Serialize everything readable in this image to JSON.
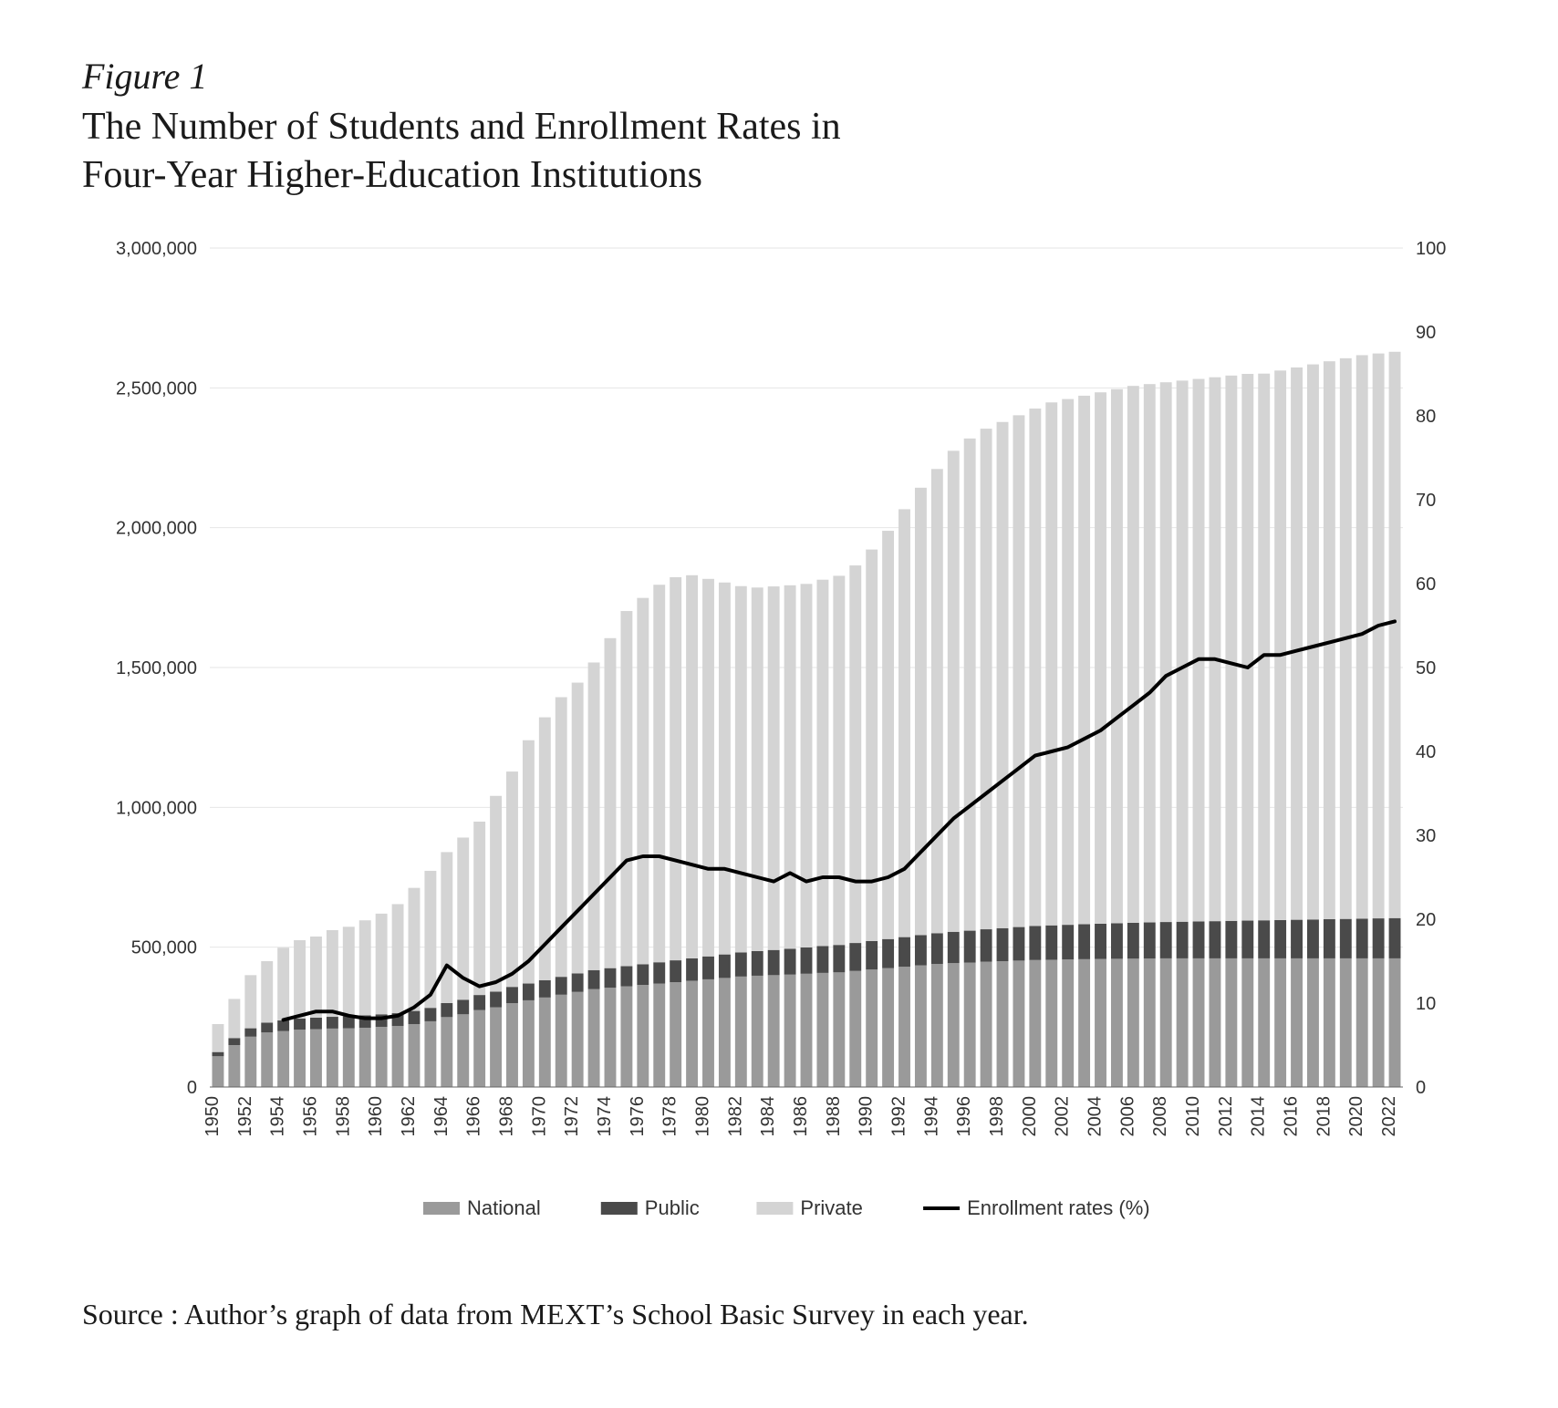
{
  "header": {
    "figure_label": "Figure 1",
    "title_line1": "The Number of Students and Enrollment Rates in",
    "title_line2": "Four-Year Higher-Education Institutions"
  },
  "chart": {
    "type": "stacked-bar + line (dual y-axis)",
    "background_color": "#ffffff",
    "grid_color": "#e6e6e6",
    "axis_color": "#666666",
    "axis_font_size": 20,
    "legend_font_size": 22,
    "tick_label_color": "#333333",
    "bar_gap_ratio": 0.28,
    "series_colors": {
      "national": "#9a9a9a",
      "public": "#4a4a4a",
      "private": "#d4d4d4",
      "line": "#000000"
    },
    "line_width": 4,
    "y_left": {
      "min": 0,
      "max": 3000000,
      "tick_step": 500000,
      "tick_labels": [
        "0",
        "500,000",
        "1,000,000",
        "1,500,000",
        "2,000,000",
        "2,500,000",
        "3,000,000"
      ]
    },
    "y_right": {
      "min": 0,
      "max": 100,
      "tick_step": 10,
      "tick_labels": [
        "0",
        "10",
        "20",
        "30",
        "40",
        "50",
        "60",
        "70",
        "80",
        "90",
        "100"
      ]
    },
    "x_tick_step": 2,
    "years": [
      1950,
      1951,
      1952,
      1953,
      1954,
      1955,
      1956,
      1957,
      1958,
      1959,
      1960,
      1961,
      1962,
      1963,
      1964,
      1965,
      1966,
      1967,
      1968,
      1969,
      1970,
      1971,
      1972,
      1973,
      1974,
      1975,
      1976,
      1977,
      1978,
      1979,
      1980,
      1981,
      1982,
      1983,
      1984,
      1985,
      1986,
      1987,
      1988,
      1989,
      1990,
      1991,
      1992,
      1993,
      1994,
      1995,
      1996,
      1997,
      1998,
      1999,
      2000,
      2001,
      2002,
      2003,
      2004,
      2005,
      2006,
      2007,
      2008,
      2009,
      2010,
      2011,
      2012,
      2013,
      2014,
      2015,
      2016,
      2017,
      2018,
      2019,
      2020,
      2021,
      2022
    ],
    "national": [
      110000,
      150000,
      180000,
      195000,
      200000,
      205000,
      207000,
      209000,
      210000,
      212000,
      215000,
      218000,
      225000,
      235000,
      250000,
      260000,
      275000,
      285000,
      300000,
      310000,
      320000,
      330000,
      340000,
      350000,
      355000,
      360000,
      365000,
      370000,
      375000,
      380000,
      385000,
      390000,
      395000,
      398000,
      400000,
      402000,
      405000,
      408000,
      410000,
      415000,
      420000,
      425000,
      430000,
      435000,
      440000,
      443000,
      445000,
      448000,
      450000,
      452000,
      454000,
      455000,
      456000,
      457000,
      458000,
      458500,
      459000,
      459500,
      460000,
      460000,
      460000,
      460000,
      460000,
      460000,
      460000,
      460000,
      460000,
      460000,
      460000,
      460000,
      460000,
      460000,
      460000
    ],
    "public": [
      15000,
      25000,
      30000,
      35000,
      38000,
      40000,
      41000,
      42000,
      43000,
      44000,
      45000,
      46000,
      47000,
      48000,
      50000,
      52000,
      54000,
      56000,
      58000,
      60000,
      62000,
      64000,
      66000,
      68000,
      70000,
      72000,
      74000,
      76000,
      78000,
      80000,
      82000,
      84000,
      86000,
      88000,
      90000,
      92000,
      94000,
      96000,
      98000,
      100000,
      102000,
      104000,
      106000,
      108000,
      110000,
      112000,
      114000,
      116000,
      118000,
      120000,
      122000,
      123000,
      124000,
      125000,
      126000,
      127000,
      128000,
      129000,
      130000,
      131000,
      132000,
      133000,
      134000,
      135000,
      136000,
      137000,
      138000,
      139000,
      140000,
      141000,
      142000,
      143000,
      144000
    ],
    "private": [
      100000,
      140000,
      190000,
      220000,
      260000,
      280000,
      290000,
      310000,
      320000,
      340000,
      360000,
      390000,
      440000,
      490000,
      540000,
      580000,
      620000,
      700000,
      770000,
      870000,
      940000,
      1000000,
      1040000,
      1100000,
      1180000,
      1270000,
      1310000,
      1350000,
      1370000,
      1370000,
      1350000,
      1330000,
      1310000,
      1300000,
      1300000,
      1300000,
      1300000,
      1310000,
      1320000,
      1350000,
      1400000,
      1460000,
      1530000,
      1600000,
      1660000,
      1720000,
      1760000,
      1790000,
      1810000,
      1830000,
      1850000,
      1870000,
      1880000,
      1890000,
      1900000,
      1910000,
      1920000,
      1925000,
      1930000,
      1935000,
      1940000,
      1945000,
      1950000,
      1955000,
      1955000,
      1965000,
      1975000,
      1985000,
      1995000,
      2005000,
      2015000,
      2020000,
      2025000
    ],
    "enrollment_rate": [
      null,
      null,
      null,
      null,
      8.0,
      8.5,
      9.0,
      9.0,
      8.5,
      8.2,
      8.2,
      8.5,
      9.5,
      11.0,
      14.5,
      13.0,
      12.0,
      12.5,
      13.5,
      15.0,
      17.0,
      19.0,
      21.0,
      23.0,
      25.0,
      27.0,
      27.5,
      27.5,
      27.0,
      26.5,
      26.0,
      26.0,
      25.5,
      25.0,
      24.5,
      25.5,
      24.5,
      25.0,
      25.0,
      24.5,
      24.5,
      25.0,
      26.0,
      28.0,
      30.0,
      32.0,
      33.5,
      35.0,
      36.5,
      38.0,
      39.5,
      40.0,
      40.5,
      41.5,
      42.5,
      44.0,
      45.5,
      47.0,
      49.0,
      50.0,
      51.0,
      51.0,
      50.5,
      50.0,
      51.5,
      51.5,
      52.0,
      52.5,
      53.0,
      53.5,
      54.0,
      55.0,
      55.5
    ],
    "legend": {
      "national": "National",
      "public": "Public",
      "private": "Private",
      "line": "Enrollment rates (%)"
    }
  },
  "source": {
    "prefix": "Source : Author’s graph of data from ",
    "org": "MEXT",
    "suffix": "’s School Basic Survey in each year."
  }
}
